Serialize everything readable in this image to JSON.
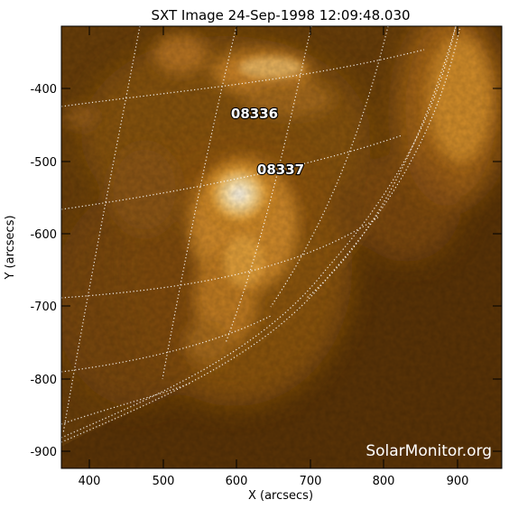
{
  "title": "SXT Image 24-Sep-1998 12:09:48.030",
  "xlabel": "X (arcsecs)",
  "ylabel": "Y (arcsecs)",
  "x_ticks": [
    "400",
    "500",
    "600",
    "700",
    "800",
    "900"
  ],
  "y_ticks": [
    "-400",
    "-500",
    "-600",
    "-700",
    "-800",
    "-900"
  ],
  "region_labels": [
    "08336",
    "08337"
  ],
  "watermark": "SolarMonitor.org",
  "colors": {
    "background": "#6a3f0a",
    "bright": "#fff4d8",
    "mid": "#d68f2a",
    "grid": "#ffffff"
  }
}
